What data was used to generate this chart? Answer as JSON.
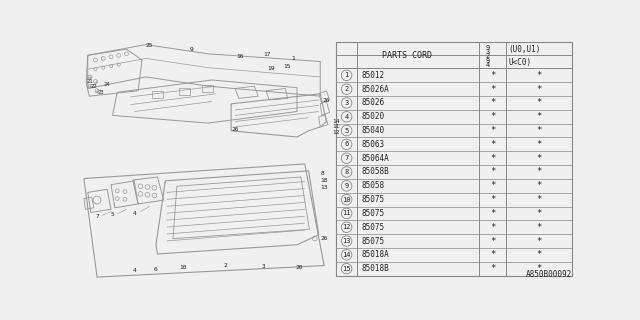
{
  "bg_color": "#f0f0f0",
  "parts": [
    {
      "num": "1",
      "code": "85012"
    },
    {
      "num": "2",
      "code": "85026A"
    },
    {
      "num": "3",
      "code": "85026"
    },
    {
      "num": "4",
      "code": "85020"
    },
    {
      "num": "5",
      "code": "85040"
    },
    {
      "num": "6",
      "code": "85063"
    },
    {
      "num": "7",
      "code": "85064A"
    },
    {
      "num": "8",
      "code": "85058B"
    },
    {
      "num": "9",
      "code": "85058"
    },
    {
      "num": "10",
      "code": "85075"
    },
    {
      "num": "11",
      "code": "85075"
    },
    {
      "num": "12",
      "code": "85075"
    },
    {
      "num": "13",
      "code": "85075"
    },
    {
      "num": "14",
      "code": "85018A"
    },
    {
      "num": "15",
      "code": "85018B"
    }
  ],
  "diagram_label": "A850B00092",
  "line_color": "#999999",
  "table_line_color": "#888888",
  "text_color": "#222222"
}
